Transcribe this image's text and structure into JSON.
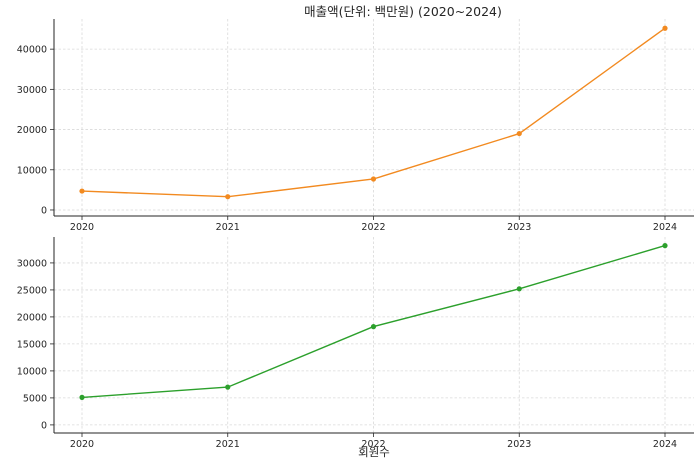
{
  "chart_data": [
    {
      "type": "line",
      "title": "매출액(단위: 백만원)   (2020~2024)",
      "xlabel": "",
      "ylabel": "",
      "x": [
        2020,
        2021,
        2022,
        2023,
        2024
      ],
      "series": [
        {
          "values": [
            4700,
            3300,
            7700,
            19000,
            45200
          ],
          "color": "#f28a20"
        }
      ],
      "ylim": [
        -1500,
        47500
      ],
      "yticks": [
        0,
        10000,
        20000,
        30000,
        40000
      ],
      "grid": true
    },
    {
      "type": "line",
      "title": "",
      "xlabel": "회원수",
      "ylabel": "",
      "x": [
        2020,
        2021,
        2022,
        2023,
        2024
      ],
      "series": [
        {
          "values": [
            5100,
            7000,
            18200,
            25200,
            33200
          ],
          "color": "#2ca02c"
        }
      ],
      "ylim": [
        -1500,
        34800
      ],
      "yticks": [
        0,
        5000,
        10000,
        15000,
        20000,
        25000,
        30000
      ],
      "grid": true
    }
  ]
}
